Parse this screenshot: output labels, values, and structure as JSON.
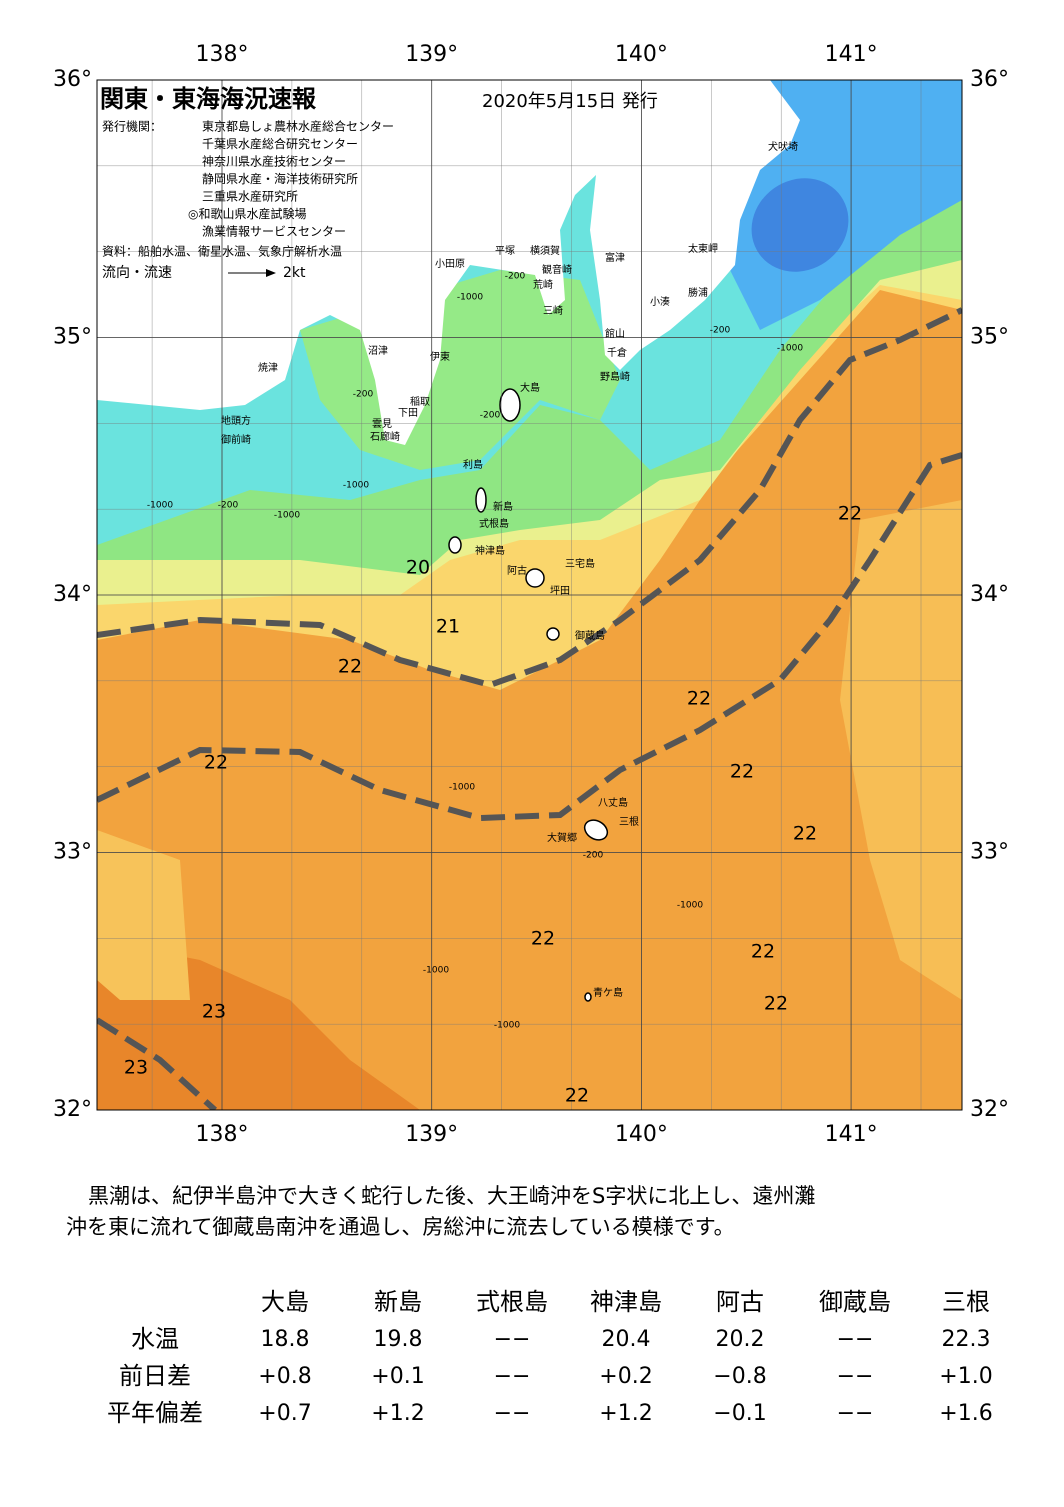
{
  "header": {
    "title": "関東・東海海況速報",
    "date": "2020年5月15日 発行",
    "publisher_label": "発行機関：",
    "publishers": [
      "東京都島しょ農林水産総合センター",
      "千葉県水産総合研究センター",
      "神奈川県水産技術センター",
      "静岡県水産・海洋技術研究所",
      "三重県水産研究所",
      "◎和歌山県水産試験場",
      "漁業情報サービスセンター"
    ],
    "source": "資料：船舶水温、衛星水温、気象庁解析水温",
    "legend_label": "流向・流速",
    "legend_speed": "2kt"
  },
  "map": {
    "lon_ticks": [
      {
        "value": 138,
        "label": "138°"
      },
      {
        "value": 139,
        "label": "139°"
      },
      {
        "value": 140,
        "label": "140°"
      },
      {
        "value": 141,
        "label": "141°"
      }
    ],
    "lat_ticks": [
      {
        "value": 36,
        "label": "36°"
      },
      {
        "value": 35,
        "label": "35°"
      },
      {
        "value": 34,
        "label": "34°"
      },
      {
        "value": 33,
        "label": "33°"
      },
      {
        "value": 32,
        "label": "32°"
      }
    ],
    "places": [
      "犬吠埼",
      "太東岬",
      "勝浦",
      "小湊",
      "富津",
      "館山",
      "千倉",
      "野島崎",
      "横須賀",
      "観音崎",
      "荒崎",
      "三崎",
      "平塚",
      "小田原",
      "沼津",
      "伊東",
      "焼津",
      "稲取",
      "下田",
      "雲見",
      "石廊崎",
      "地頭方",
      "御前崎",
      "大島",
      "利島",
      "新島",
      "式根島",
      "神津島",
      "阿古",
      "三宅島",
      "坪田",
      "御蔵島",
      "八丈島",
      "三根",
      "大賀郷",
      "青ケ島"
    ],
    "temperature_labels": [
      "20",
      "21",
      "22",
      "22",
      "22",
      "22",
      "22",
      "22",
      "22",
      "22",
      "22",
      "22",
      "23",
      "23"
    ],
    "depth_labels": [
      "-200",
      "-200",
      "-200",
      "-200",
      "-200",
      "-200",
      "-1000",
      "-1000",
      "-1000",
      "-1000",
      "-1000",
      "-1000",
      "-1000",
      "-1000",
      "-1000"
    ]
  },
  "description": [
    "黒潮は、紀伊半島沖で大きく蛇行した後、大王崎沖をS字状に北上し、遠州灘",
    "沖を東に流れて御蔵島南沖を通過し、房総沖に流去している模様です。"
  ],
  "table": {
    "columns": [
      "大島",
      "新島",
      "式根島",
      "神津島",
      "阿古",
      "御蔵島",
      "三根"
    ],
    "rows": [
      {
        "label": "水温",
        "cells": [
          "18.8",
          "19.8",
          "−−",
          "20.4",
          "20.2",
          "−−",
          "22.3"
        ]
      },
      {
        "label": "前日差",
        "cells": [
          "+0.8",
          "+0.1",
          "−−",
          "+0.2",
          "−0.8",
          "−−",
          "+1.0"
        ]
      },
      {
        "label": "平年偏差",
        "cells": [
          "+0.7",
          "+1.2",
          "−−",
          "+1.2",
          "−0.1",
          "−−",
          "+1.6"
        ]
      }
    ]
  }
}
